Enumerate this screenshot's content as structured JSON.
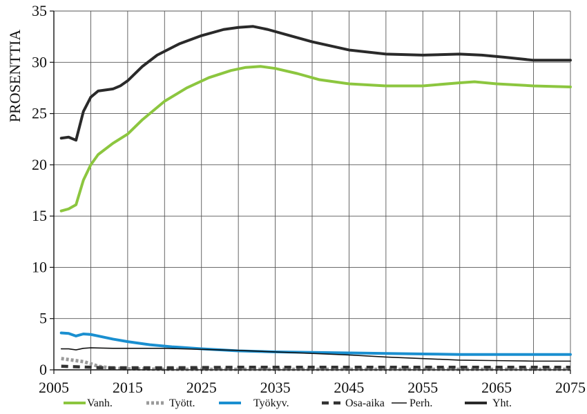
{
  "chart_data": {
    "type": "line",
    "ylabel": "PROSENTTIA",
    "xlabel": "",
    "xlim": [
      2005,
      2075
    ],
    "ylim": [
      0,
      35
    ],
    "x_ticks": [
      2005,
      2015,
      2025,
      2035,
      2045,
      2055,
      2065,
      2075
    ],
    "y_ticks": [
      0,
      5,
      10,
      15,
      20,
      25,
      30,
      35
    ],
    "grid": "vertical and horizontal",
    "legend_position": "bottom",
    "series": [
      {
        "name": "Vanh.",
        "color": "#8cc63f",
        "style": "solid-thick",
        "points": [
          [
            2006,
            15.5
          ],
          [
            2007,
            15.7
          ],
          [
            2008,
            16.1
          ],
          [
            2009,
            18.5
          ],
          [
            2010,
            20.0
          ],
          [
            2011,
            21.0
          ],
          [
            2013,
            22.1
          ],
          [
            2015,
            23.0
          ],
          [
            2017,
            24.4
          ],
          [
            2020,
            26.2
          ],
          [
            2023,
            27.5
          ],
          [
            2026,
            28.5
          ],
          [
            2029,
            29.2
          ],
          [
            2031,
            29.5
          ],
          [
            2033,
            29.6
          ],
          [
            2035,
            29.4
          ],
          [
            2038,
            28.9
          ],
          [
            2041,
            28.3
          ],
          [
            2045,
            27.9
          ],
          [
            2050,
            27.7
          ],
          [
            2055,
            27.7
          ],
          [
            2060,
            28.0
          ],
          [
            2062,
            28.1
          ],
          [
            2065,
            27.9
          ],
          [
            2070,
            27.7
          ],
          [
            2075,
            27.6
          ]
        ]
      },
      {
        "name": "Tyött.",
        "color": "#9a9a9a",
        "style": "dotted-thick",
        "points": [
          [
            2006,
            1.1
          ],
          [
            2007,
            1.0
          ],
          [
            2008,
            0.9
          ],
          [
            2009,
            0.8
          ],
          [
            2010,
            0.6
          ],
          [
            2011,
            0.35
          ],
          [
            2013,
            0.15
          ],
          [
            2015,
            0.1
          ],
          [
            2020,
            0.05
          ],
          [
            2030,
            0.05
          ],
          [
            2045,
            0.05
          ],
          [
            2060,
            0.05
          ],
          [
            2075,
            0.05
          ]
        ]
      },
      {
        "name": "Työkyv.",
        "color": "#1a8fd0",
        "style": "solid-thick",
        "points": [
          [
            2006,
            3.6
          ],
          [
            2007,
            3.55
          ],
          [
            2008,
            3.3
          ],
          [
            2009,
            3.5
          ],
          [
            2010,
            3.45
          ],
          [
            2011,
            3.3
          ],
          [
            2013,
            3.0
          ],
          [
            2015,
            2.75
          ],
          [
            2018,
            2.45
          ],
          [
            2021,
            2.25
          ],
          [
            2025,
            2.05
          ],
          [
            2030,
            1.85
          ],
          [
            2035,
            1.75
          ],
          [
            2040,
            1.7
          ],
          [
            2045,
            1.65
          ],
          [
            2050,
            1.6
          ],
          [
            2055,
            1.55
          ],
          [
            2060,
            1.5
          ],
          [
            2065,
            1.5
          ],
          [
            2070,
            1.5
          ],
          [
            2075,
            1.5
          ]
        ]
      },
      {
        "name": "Osa-aika",
        "color": "#333333",
        "style": "dashed-thick",
        "points": [
          [
            2006,
            0.35
          ],
          [
            2008,
            0.3
          ],
          [
            2010,
            0.25
          ],
          [
            2012,
            0.2
          ],
          [
            2015,
            0.2
          ],
          [
            2020,
            0.2
          ],
          [
            2030,
            0.25
          ],
          [
            2040,
            0.25
          ],
          [
            2050,
            0.25
          ],
          [
            2060,
            0.25
          ],
          [
            2075,
            0.25
          ]
        ]
      },
      {
        "name": "Perh.",
        "color": "#111111",
        "style": "solid-thin",
        "points": [
          [
            2006,
            2.05
          ],
          [
            2007,
            2.05
          ],
          [
            2008,
            1.95
          ],
          [
            2009,
            2.1
          ],
          [
            2010,
            2.15
          ],
          [
            2013,
            2.1
          ],
          [
            2015,
            2.1
          ],
          [
            2020,
            2.1
          ],
          [
            2025,
            2.0
          ],
          [
            2030,
            1.9
          ],
          [
            2035,
            1.75
          ],
          [
            2040,
            1.6
          ],
          [
            2045,
            1.45
          ],
          [
            2050,
            1.25
          ],
          [
            2055,
            1.1
          ],
          [
            2060,
            0.95
          ],
          [
            2065,
            0.9
          ],
          [
            2070,
            0.85
          ],
          [
            2075,
            0.85
          ]
        ]
      },
      {
        "name": "Yht.",
        "color": "#2a2a2a",
        "style": "solid-thick",
        "points": [
          [
            2006,
            22.6
          ],
          [
            2007,
            22.7
          ],
          [
            2008,
            22.4
          ],
          [
            2009,
            25.2
          ],
          [
            2010,
            26.6
          ],
          [
            2011,
            27.2
          ],
          [
            2013,
            27.4
          ],
          [
            2014,
            27.7
          ],
          [
            2015,
            28.2
          ],
          [
            2017,
            29.6
          ],
          [
            2019,
            30.7
          ],
          [
            2022,
            31.8
          ],
          [
            2025,
            32.6
          ],
          [
            2028,
            33.2
          ],
          [
            2030,
            33.4
          ],
          [
            2032,
            33.5
          ],
          [
            2034,
            33.2
          ],
          [
            2037,
            32.6
          ],
          [
            2040,
            32.0
          ],
          [
            2045,
            31.2
          ],
          [
            2050,
            30.8
          ],
          [
            2055,
            30.7
          ],
          [
            2060,
            30.8
          ],
          [
            2063,
            30.7
          ],
          [
            2066,
            30.5
          ],
          [
            2070,
            30.2
          ],
          [
            2075,
            30.2
          ]
        ]
      }
    ]
  }
}
